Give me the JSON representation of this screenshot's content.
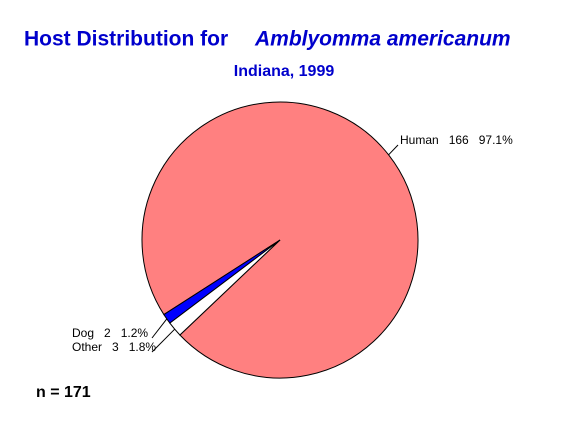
{
  "chart_data": {
    "type": "pie",
    "title": "Host Distribution for",
    "title_italic": "Amblyomma americanum",
    "subtitle": "Indiana, 1999",
    "categories": [
      "Human",
      "Dog",
      "Other"
    ],
    "counts": [
      166,
      2,
      3
    ],
    "values": [
      97.1,
      1.2,
      1.8
    ],
    "value_labels": [
      "97.1%",
      "1.2%",
      "1.8%"
    ],
    "colors": [
      "#ff8080",
      "#0000ff",
      "#ffffff"
    ],
    "footnote": "n = 171"
  }
}
